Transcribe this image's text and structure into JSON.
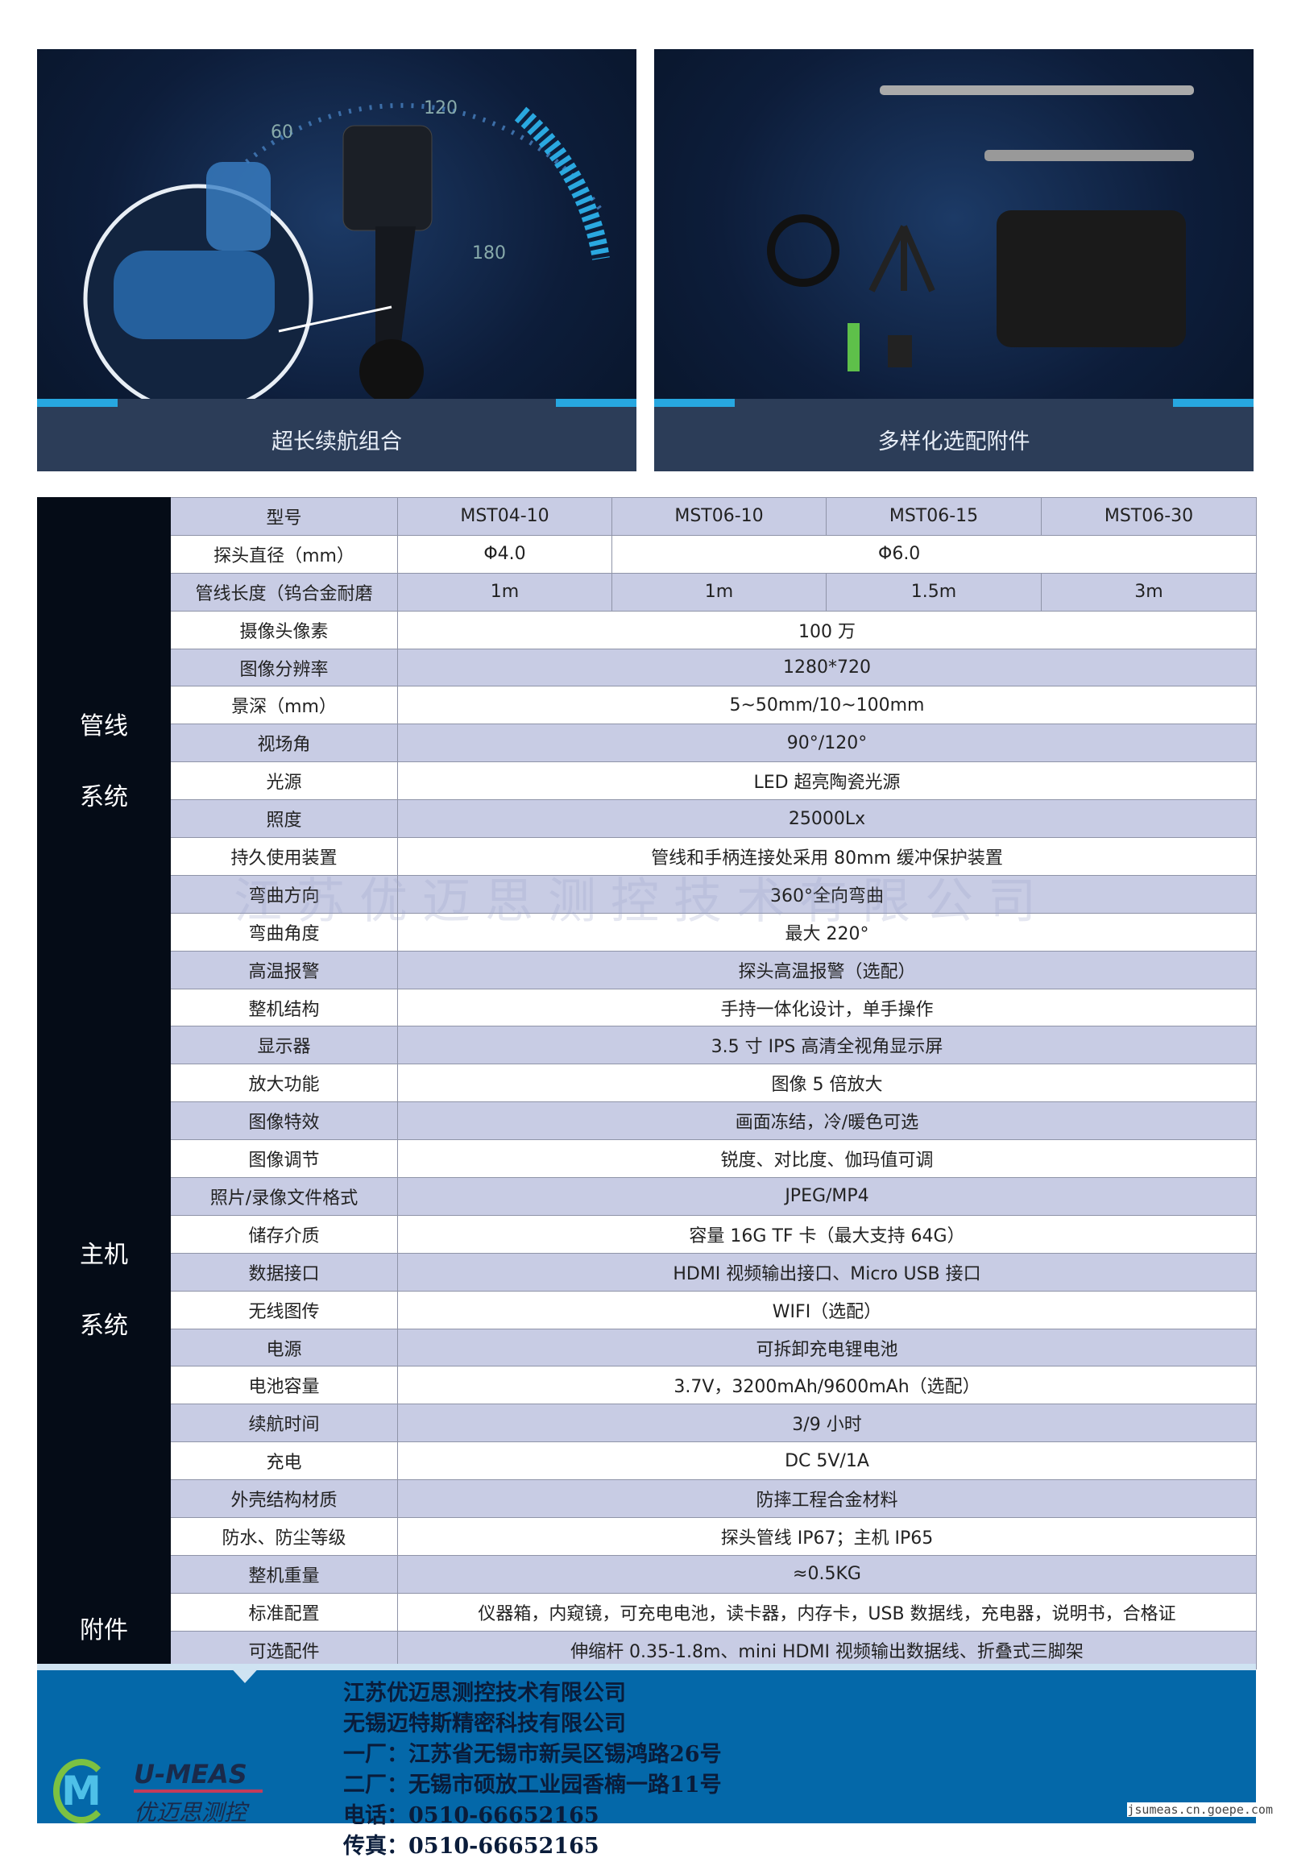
{
  "banners": [
    {
      "caption": "超长续航组合",
      "gauge_ticks": [
        "60",
        "120",
        "180"
      ]
    },
    {
      "caption": "多样化选配附件"
    }
  ],
  "table": {
    "header": {
      "label": "型号",
      "models": [
        "MST04-10",
        "MST06-10",
        "MST06-15",
        "MST06-30"
      ]
    },
    "probe_diameter": {
      "label": "探头直径（mm）",
      "v1": "Φ4.0",
      "v2": "Φ6.0"
    },
    "cable_length": {
      "label": "管线长度（钨合金耐磨",
      "values": [
        "1m",
        "1m",
        "1.5m",
        "3m"
      ]
    },
    "sections": {
      "pipeline": "管线\n\n系统",
      "host": "主机\n\n系统",
      "accessory": "附件"
    },
    "rows": [
      {
        "label": "摄像头像素",
        "value": "100 万"
      },
      {
        "label": "图像分辨率",
        "value": "1280*720"
      },
      {
        "label": "景深（mm）",
        "value": "5~50mm/10~100mm"
      },
      {
        "label": "视场角",
        "value": "90°/120°"
      },
      {
        "label": "光源",
        "value": "LED 超亮陶瓷光源"
      },
      {
        "label": "照度",
        "value": "25000Lx"
      },
      {
        "label": "持久使用装置",
        "value": "管线和手柄连接处采用 80mm 缓冲保护装置"
      },
      {
        "label": "弯曲方向",
        "value": "360°全向弯曲"
      },
      {
        "label": "弯曲角度",
        "value": "最大 220°"
      },
      {
        "label": "高温报警",
        "value": "探头高温报警（选配）"
      },
      {
        "label": "整机结构",
        "value": "手持一体化设计，单手操作"
      },
      {
        "label": "显示器",
        "value": "3.5 寸 IPS 高清全视角显示屏"
      },
      {
        "label": "放大功能",
        "value": "图像 5 倍放大"
      },
      {
        "label": "图像特效",
        "value": "画面冻结，冷/暖色可选"
      },
      {
        "label": "图像调节",
        "value": "锐度、对比度、伽玛值可调"
      },
      {
        "label": "照片/录像文件格式",
        "value": "JPEG/MP4"
      },
      {
        "label": "储存介质",
        "value": "容量 16G TF 卡（最大支持 64G）"
      },
      {
        "label": "数据接口",
        "value": "HDMI 视频输出接口、Micro USB 接口"
      },
      {
        "label": "无线图传",
        "value": "WIFI（选配）"
      },
      {
        "label": "电源",
        "value": "可拆卸充电锂电池"
      },
      {
        "label": "电池容量",
        "value": "3.7V，3200mAh/9600mAh（选配）"
      },
      {
        "label": "续航时间",
        "value": "3/9 小时"
      },
      {
        "label": "充电",
        "value": "DC 5V/1A"
      },
      {
        "label": "外壳结构材质",
        "value": "防摔工程合金材料"
      },
      {
        "label": "防水、防尘等级",
        "value": "探头管线 IP67；主机 IP65"
      },
      {
        "label": "整机重量",
        "value": "≈0.5KG"
      },
      {
        "label": "标准配置",
        "value": "仪器箱，内窥镜，可充电电池，读卡器，内存卡，USB 数据线，充电器，说明书，合格证"
      },
      {
        "label": "可选配件",
        "value": "伸缩杆 0.35-1.8m、mini HDMI 视频输出数据线、折叠式三脚架"
      }
    ]
  },
  "watermark": "江苏优迈思测控技术有限公司",
  "footer": {
    "lines": [
      "江苏优迈思测控技术有限公司",
      "无锡迈特斯精密科技有限公司",
      "一厂：江苏省无锡市新吴区锡鸿路26号",
      "二厂：无锡市硕放工业园香楠一路11号",
      "电话：0510-66652165",
      "传真：0510-66652165"
    ],
    "logo_en": "U-MEAS",
    "logo_cn": "优迈思测控",
    "logo_mark": "M"
  },
  "site": "jsumeas.cn.goepe.com",
  "colors": {
    "accent": "#27a7e0",
    "footer": "#0468a9",
    "row_alt": "#c8cce4",
    "section": "#050c17"
  }
}
